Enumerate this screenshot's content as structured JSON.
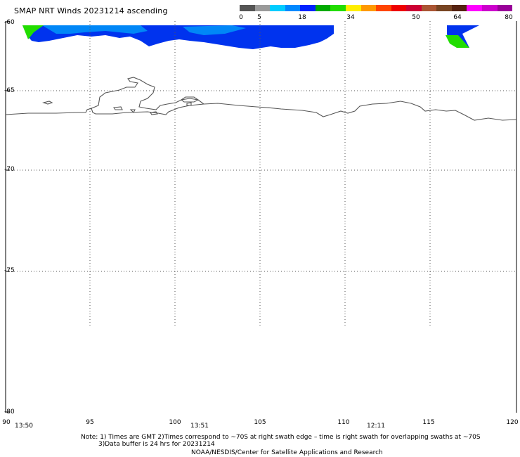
{
  "title": "SMAP NRT Winds 20231214 ascending",
  "colorbar": {
    "ticks": [
      "0",
      "5",
      "18",
      "34",
      "50",
      "64",
      "80"
    ],
    "colors": [
      "#555555",
      "#9a9a9a",
      "#00ccff",
      "#0088ff",
      "#0022ff",
      "#00aa00",
      "#22dd00",
      "#ffee00",
      "#ff9900",
      "#ff4400",
      "#ee0000",
      "#cc0033",
      "#aa5533",
      "#774422",
      "#552211",
      "#ff00ff",
      "#cc00cc",
      "#990099"
    ]
  },
  "lat_labels": [
    "-60",
    "-65",
    "-70",
    "-75",
    "-80"
  ],
  "lon_labels": [
    "90",
    "95",
    "100",
    "105",
    "110",
    "115",
    "120"
  ],
  "time_labels": [
    "13:50",
    "13:51",
    "12:11"
  ],
  "notes": {
    "line1": "Note: 1) Times are GMT 2)Times correspond to ~70S at right swath edge – time is right swath for overlapping swaths at ~70S",
    "line2": "3)Data buffer is 24 hrs for 20231214",
    "line3": "NOAA/NESDIS/Center for Satellite Applications and Research"
  },
  "map_colors": {
    "coastline": "#555555",
    "grid": "#444444",
    "wind_low": "#0033ee",
    "wind_mid": "#00ccff",
    "wind_green": "#22dd00"
  }
}
